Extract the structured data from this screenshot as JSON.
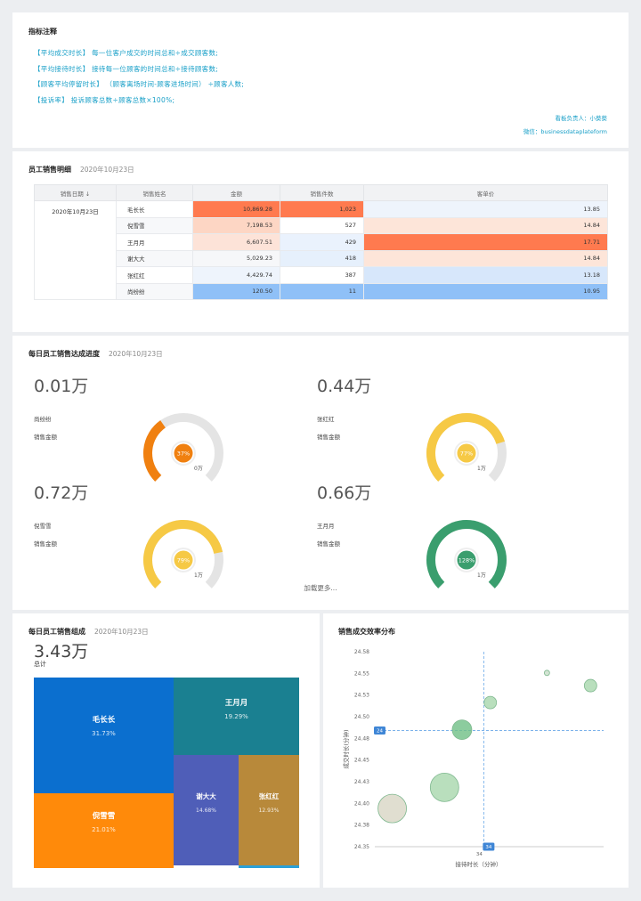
{
  "notes": {
    "title": "指标注释",
    "lines": [
      "【平均成交时长】 每一位客户成交的时间总和÷成交顾客数;",
      "【平均接待时长】 接待每一位顾客的时间总和÷接待顾客数;",
      "【顾客平均停留时长】 （顾客离场时间-顾客进场时间） ÷顾客人数;",
      "【投诉率】 投诉顾客总数÷顾客总数×100%;"
    ],
    "owner": "看板负责人：小葵葵",
    "wechat": "微信：businessdataplateform"
  },
  "sales_table": {
    "title": "员工销售明细",
    "date": "2020年10月23日",
    "columns": [
      "销售日期 ↓",
      "销售姓名",
      "金额",
      "销售件数",
      "客单价"
    ],
    "date_cell": "2020年10月23日",
    "rows": [
      {
        "name": "毛长长",
        "amount": "10,869.28",
        "count": "1,023",
        "price": "13.85"
      },
      {
        "name": "倪雪雪",
        "amount": "7,198.53",
        "count": "527",
        "price": "14.84"
      },
      {
        "name": "王月月",
        "amount": "6,607.51",
        "count": "429",
        "price": "17.71"
      },
      {
        "name": "谢大大",
        "amount": "5,029.23",
        "count": "418",
        "price": "14.84"
      },
      {
        "name": "张红红",
        "amount": "4,429.74",
        "count": "387",
        "price": "13.18"
      },
      {
        "name": "尚纷纷",
        "amount": "120.50",
        "count": "11",
        "price": "10.95"
      }
    ],
    "colors": {
      "amount": [
        "#ff7a4f",
        "#fdd6c4",
        "#fde3d8",
        "#f6f7f9",
        "#eef4fc",
        "#8fc0f7"
      ],
      "count": [
        "#ff7a4f",
        "#ffffff",
        "#eaf2fd",
        "#e6f0fc",
        "#ffffff",
        "#8fc0f7"
      ],
      "price": [
        "#eef4fc",
        "#fde5d9",
        "#ff7a4f",
        "#fde5d9",
        "#d7e7fb",
        "#8fc0f7"
      ]
    }
  },
  "gauges": {
    "title": "每日员工销售达成进度",
    "date": "2020年10月23日",
    "load_more": "加载更多...",
    "items": [
      {
        "value": "0.01万",
        "name": "尚纷纷",
        "metric": "销售金额",
        "pct": 37,
        "pct_label": "37%",
        "min": "0",
        "max": "0万",
        "color": "#f08010"
      },
      {
        "value": "0.44万",
        "name": "张红红",
        "metric": "销售金额",
        "pct": 77,
        "pct_label": "77%",
        "min": "0",
        "max": "1万",
        "color": "#f6c945"
      },
      {
        "value": "0.72万",
        "name": "倪雪雪",
        "metric": "销售金额",
        "pct": 79,
        "pct_label": "79%",
        "min": "0",
        "max": "1万",
        "color": "#f6c945"
      },
      {
        "value": "0.66万",
        "name": "王月月",
        "metric": "销售金额",
        "pct": 128,
        "pct_label": "128%",
        "min": "0",
        "max": "1万",
        "color": "#3a9e6e"
      }
    ]
  },
  "treemap": {
    "title": "每日员工销售组成",
    "date": "2020年10月23日",
    "total_value": "3.43万",
    "total_label": "总计",
    "items": [
      {
        "name": "毛长长",
        "pct": "31.73%",
        "color": "#0b6fcf"
      },
      {
        "name": "倪雪雪",
        "pct": "21.01%",
        "color": "#ff8a0a"
      },
      {
        "name": "王月月",
        "pct": "19.29%",
        "color": "#1a8091"
      },
      {
        "name": "谢大大",
        "pct": "14.68%",
        "color": "#4f5eb8"
      },
      {
        "name": "张红红",
        "pct": "12.93%",
        "color": "#b8893a"
      }
    ]
  },
  "scatter": {
    "title": "销售成交效率分布",
    "chart_data": {
      "type": "scatter",
      "xlabel": "接待时长（分钟）",
      "ylabel": "成交时长(分钟)",
      "y_ticks": [
        "24.58",
        "24.55",
        "24.53",
        "24.50",
        "24.48",
        "24.45",
        "24.43",
        "24.40",
        "24.38",
        "24.35"
      ],
      "x_tick": "34",
      "ref_x": 34,
      "ref_y": 24.487,
      "ref_x_label": "34",
      "ref_y_label": "24",
      "ylim": [
        24.35,
        24.58
      ],
      "xlim": [
        29,
        39.5
      ],
      "points": [
        {
          "x": 29.8,
          "y": 24.395,
          "r": 16,
          "color": "#d8d6c4"
        },
        {
          "x": 32.2,
          "y": 24.42,
          "r": 16,
          "color": "#a7d7ad"
        },
        {
          "x": 33.0,
          "y": 24.488,
          "r": 11,
          "color": "#6fbf86"
        },
        {
          "x": 34.3,
          "y": 24.52,
          "r": 7,
          "color": "#a7d7ad"
        },
        {
          "x": 36.9,
          "y": 24.555,
          "r": 3,
          "color": "#c8ddc8"
        },
        {
          "x": 38.9,
          "y": 24.54,
          "r": 7,
          "color": "#a7d7ad"
        }
      ]
    }
  }
}
